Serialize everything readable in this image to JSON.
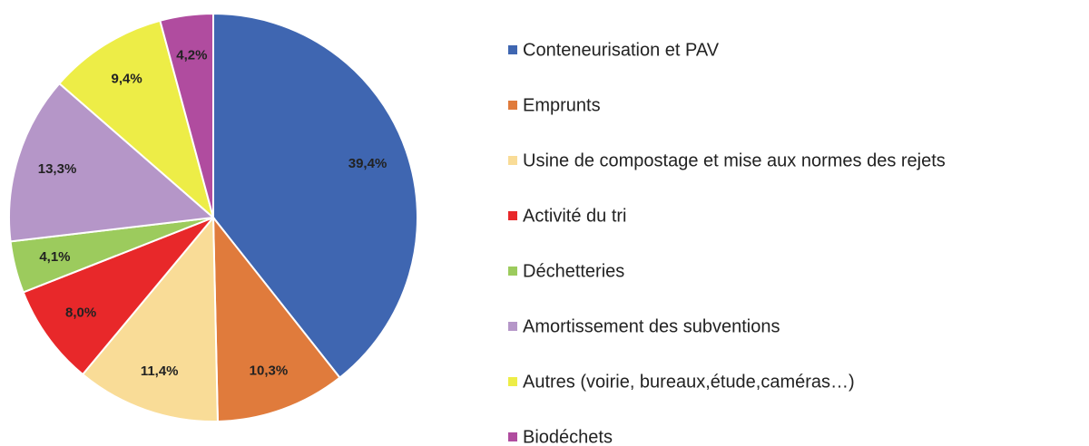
{
  "chart_data": {
    "type": "pie",
    "categories": [
      "Conteneurisation et PAV",
      "Emprunts",
      "Usine de compostage et mise aux normes des rejets",
      "Activité du tri",
      "Déchetteries",
      "Amortissement des subventions",
      "Autres (voirie, bureaux,étude,caméras…)",
      "Biodéchets"
    ],
    "values": [
      39.4,
      10.3,
      11.4,
      8.0,
      4.1,
      13.3,
      9.4,
      4.2
    ],
    "value_labels": [
      "39,4%",
      "10,3%",
      "11,4%",
      "8,0%",
      "4,1%",
      "13,3%",
      "9,4%",
      "4,2%"
    ],
    "colors": [
      "#3f66b1",
      "#e07b3c",
      "#f9dc97",
      "#e8282a",
      "#9ccb5d",
      "#b596c8",
      "#eded47",
      "#b04c9f"
    ],
    "legend": "right"
  }
}
